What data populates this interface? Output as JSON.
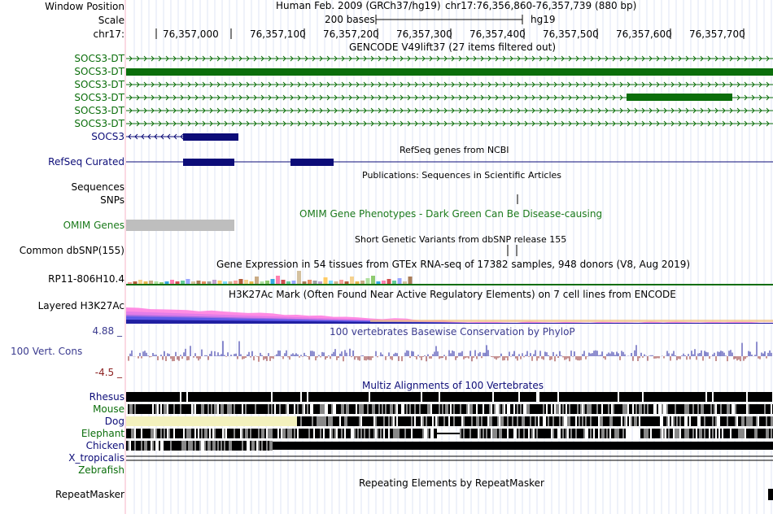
{
  "labels": {
    "window_position": "Window Position",
    "scale": "Scale",
    "chr": "chr17:",
    "tx1": "SOCS3-DT",
    "tx2": "SOCS3-DT",
    "tx3": "SOCS3-DT",
    "tx4": "SOCS3-DT",
    "tx5": "SOCS3-DT",
    "tx6": "SOCS3-DT",
    "socs3": "SOCS3",
    "refseq": "RefSeq Curated",
    "sequences": "Sequences",
    "snps": "SNPs",
    "omim": "OMIM Genes",
    "dbsnp": "Common dbSNP(155)",
    "gtex": "RP11-806H10.4",
    "h3k27ac": "Layered H3K27Ac",
    "cons_max": "4.88 _",
    "cons": "100 Vert. Cons",
    "cons_min": "-4.5 _",
    "rhesus": "Rhesus",
    "mouse": "Mouse",
    "dog": "Dog",
    "elephant": "Elephant",
    "chicken": "Chicken",
    "xtrop": "X_tropicalis",
    "zebrafish": "Zebrafish",
    "repeatmasker": "RepeatMasker"
  },
  "titles": {
    "assembly": "Human Feb. 2009 (GRCh37/hg19)",
    "position": "chr17:76,356,860-76,357,739 (880 bp)",
    "scale_bar": "200 bases",
    "scale_db": "hg19",
    "gencode": "GENCODE V49lift37 (27 items filtered out)",
    "refseq": "RefSeq genes from NCBI",
    "publications": "Publications: Sequences in Scientific Articles",
    "omim": "OMIM Gene Phenotypes - Dark Green Can Be Disease-causing",
    "dbsnp": "Short Genetic Variants from dbSNP release 155",
    "gtex": "Gene Expression in 54 tissues from GTEx RNA-seq of 17382 samples, 948 donors (V8, Aug 2019)",
    "h3k27ac": "H3K27Ac Mark (Often Found Near Active Regulatory Elements) on 7 cell lines from ENCODE",
    "phylop": "100 vertebrates Basewise Conservation by PhyloP",
    "multiz": "Multiz Alignments of 100 Vertebrates",
    "repeatmasker": "Repeating Elements by RepeatMasker"
  },
  "ruler": {
    "ticks": [
      "76,357,000",
      "76,357,100",
      "76,357,200",
      "76,357,300",
      "76,357,400",
      "76,357,500",
      "76,357,600",
      "76,357,700"
    ]
  },
  "colors": {
    "gencode": "#0b6e0b",
    "refseq": "#0c0c78",
    "omim_green": "#1b7a1b",
    "omim_gray": "#bebebe",
    "cons_blue": "#1f1f9f",
    "cons_red": "#8b2020",
    "label_blue": "#3b3b8f",
    "dog_fill": "#f3f1bd"
  }
}
